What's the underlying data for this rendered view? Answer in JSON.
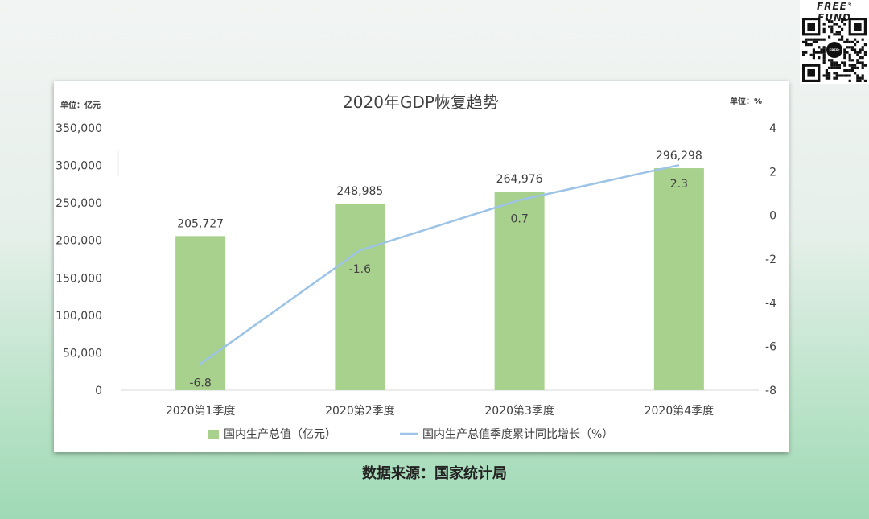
{
  "brand": {
    "name": "FREE³ FUND",
    "qr_center": "FREE³"
  },
  "source": "数据来源：国家统计局",
  "colors": {
    "bar": "#a9d18e",
    "line": "#9dc3e6",
    "text": "#404040",
    "axis": "#d9d9d9",
    "title": "#404040"
  },
  "chart_data": {
    "type": "bar",
    "title": "2020年GDP恢复趋势",
    "left_unit": "单位：亿元",
    "right_unit": "单位：%",
    "categories": [
      "2020第1季度",
      "2020第2季度",
      "2020第3季度",
      "2020第4季度"
    ],
    "series": [
      {
        "name": "国内生产总值（亿元）",
        "type": "bar",
        "axis": "left",
        "values": [
          205727,
          248985,
          264976,
          296298
        ],
        "labels": [
          "205,727",
          "248,985",
          "264,976",
          "296,298"
        ]
      },
      {
        "name": "国内生产总值季度累计同比增长（%）",
        "type": "line",
        "axis": "right",
        "values": [
          -6.8,
          -1.6,
          0.7,
          2.3
        ],
        "labels": [
          "-6.8",
          "-1.6",
          "0.7",
          "2.3"
        ]
      }
    ],
    "y_left": {
      "min": 0,
      "max": 350000,
      "ticks": [
        "0",
        "50,000",
        "100,000",
        "150,000",
        "200,000",
        "250,000",
        "300,000",
        "350,000"
      ]
    },
    "y_right": {
      "min": -8,
      "max": 4,
      "ticks": [
        "-8",
        "-6",
        "-4",
        "-2",
        "0",
        "2",
        "4"
      ]
    },
    "legend": "bottom",
    "grid": false
  }
}
